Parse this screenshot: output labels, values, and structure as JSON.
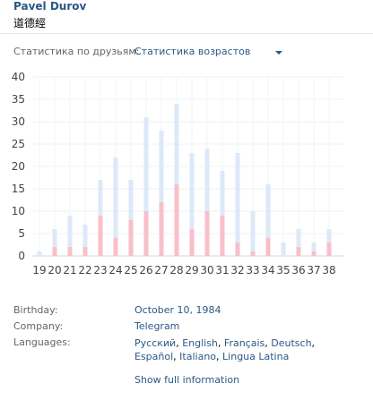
{
  "profile": {
    "name": "Pavel Durov",
    "status": "道德經"
  },
  "stats": {
    "label": "Статистика по друзьям:",
    "selected": "Статистика возрастов"
  },
  "chart_data": {
    "type": "bar",
    "categories": [
      "19",
      "20",
      "21",
      "22",
      "23",
      "24",
      "25",
      "26",
      "27",
      "28",
      "29",
      "30",
      "31",
      "32",
      "33",
      "34",
      "35",
      "36",
      "37",
      "38"
    ],
    "series": [
      {
        "values": [
          1,
          6,
          9,
          7,
          17,
          22,
          17,
          31,
          28,
          34,
          23,
          24,
          19,
          23,
          10,
          16,
          3,
          6,
          3,
          6
        ]
      },
      {
        "values": [
          0,
          2,
          2,
          2,
          9,
          4,
          8,
          10,
          12,
          16,
          6,
          10,
          9,
          3,
          1,
          4,
          0,
          2,
          1,
          3
        ]
      }
    ],
    "yticks": [
      "0",
      "5",
      "10",
      "15",
      "20",
      "25",
      "30",
      "35",
      "40"
    ],
    "ylim": [
      0,
      40
    ],
    "colors": {
      "total": "#dce9f8",
      "highlight": "#f8bfca"
    },
    "grid": true
  },
  "info": {
    "birthday_label": "Birthday:",
    "birthday_value": "October 10, 1984",
    "company_label": "Company:",
    "company_value": "Telegram",
    "languages_label": "Languages:",
    "languages": [
      "Русский",
      "English",
      "Français",
      "Deutsch",
      "Español",
      "Italiano",
      "Lingua Latina"
    ],
    "show_full": "Show full information"
  }
}
